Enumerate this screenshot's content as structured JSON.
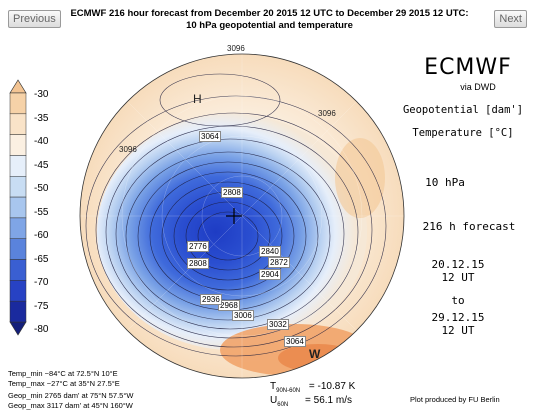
{
  "nav": {
    "prev_label": "Previous",
    "next_label": "Next"
  },
  "title": {
    "line1": "ECMWF 216 hour forecast from December 20 2015 12 UTC to December 29 2015 12 UTC:",
    "line2": "10 hPa geopotential and temperature"
  },
  "colorbar": {
    "labels": [
      "-30",
      "-35",
      "-40",
      "-45",
      "-50",
      "-55",
      "-60",
      "-65",
      "-70",
      "-75",
      "-80"
    ],
    "colors": [
      "#f6d2a8",
      "#f9e3c8",
      "#fbf0e2",
      "#e6effa",
      "#c8ddf3",
      "#a8c6ee",
      "#7fa5e6",
      "#5a83dc",
      "#3a5fd2",
      "#2742c4",
      "#1a2a9e"
    ]
  },
  "map": {
    "pressure_labels": [
      "3096",
      "3096",
      "3096",
      "3064",
      "3064",
      "3032",
      "3006",
      "2968",
      "2936",
      "2904",
      "2872",
      "2840",
      "2808",
      "2808",
      "2776"
    ],
    "high_marker": "H",
    "warm_marker": "W"
  },
  "right_panel": {
    "brand": "ECMWF",
    "via": "via DWD",
    "param1": "Geopotential [dam']",
    "param2": "Temperature [°C]",
    "level": "10 hPa",
    "forecast": "216 h forecast",
    "init_date": "20.12.15",
    "init_time": "12 UT",
    "to": "to",
    "valid_date": "29.12.15",
    "valid_time": "12 UT"
  },
  "stats": {
    "temp_min": "Temp_min −84°C at 72.5°N 10°E",
    "temp_max": "Temp_max −27°C at 35°N 27.5°E",
    "geop_min": "Geop_min 2765 dam' at 75°N 57.5°W",
    "geop_max": "Geop_max 3117 dam' at 45°N 160°W"
  },
  "diagnostics": {
    "t_label": "T",
    "t_sub": "90N-60N",
    "t_value": "= -10.87 K",
    "u_label": "U",
    "u_sub": "60N",
    "u_value": "= 56.1 m/s"
  },
  "credit": "Plot produced by FU Berlin"
}
